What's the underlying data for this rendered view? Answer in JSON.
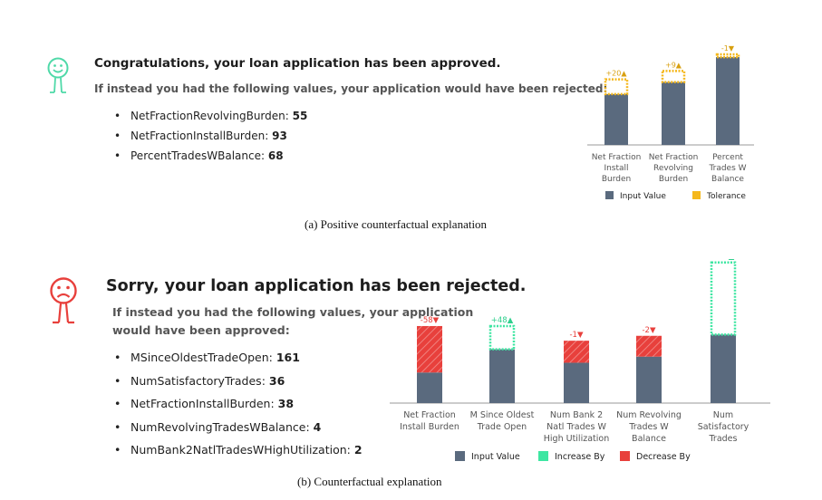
{
  "panel_a": {
    "face_icon": "smiley-face-icon",
    "title": "Congratulations, your loan application has been approved.",
    "subtitle": "If instead you had the following values, your application would have been rejected:",
    "items": [
      {
        "name": "NetFractionRevolvingBurden",
        "value": "55"
      },
      {
        "name": "NetFractionInstallBurden",
        "value": "93"
      },
      {
        "name": "PercentTradesWBalance",
        "value": "68"
      }
    ],
    "caption": "(a) Positive counterfactual explanation"
  },
  "panel_b": {
    "face_icon": "sad-face-icon",
    "title": "Sorry, your loan application has been rejected.",
    "subtitle": "If instead you had the following values, your application would have been approved:",
    "items": [
      {
        "name": "MSinceOldestTradeOpen",
        "value": "161"
      },
      {
        "name": "NumSatisfactoryTrades",
        "value": "36"
      },
      {
        "name": "NetFractionInstallBurden",
        "value": "38"
      },
      {
        "name": "NumRevolvingTradesWBalance",
        "value": "4"
      },
      {
        "name": "NumBank2NatlTradesWHighUtilization",
        "value": "2"
      }
    ],
    "caption": "(b) Counterfactual explanation"
  },
  "chart_data": [
    {
      "type": "bar",
      "categories": [
        [
          "Net Fraction",
          "Install",
          "Burden"
        ],
        [
          "Net Fraction",
          "Revolving",
          "Burden"
        ],
        [
          "Percent",
          "Trades W",
          "Balance"
        ]
      ],
      "series": [
        {
          "name": "Input Value",
          "values": [
            0.55,
            0.68,
            0.95
          ]
        },
        {
          "name": "Tolerance",
          "values": [
            0.16,
            0.12,
            0.03
          ]
        }
      ],
      "data_labels": [
        "+20▲",
        "+9▲",
        "-1▼"
      ],
      "legend": [
        "Input Value",
        "Tolerance"
      ],
      "legend_placement": "bottom",
      "colors": {
        "input": "#5a6a7e",
        "tolerance": "#f5b81c"
      }
    },
    {
      "type": "bar",
      "categories": [
        [
          "Net Fraction",
          "Install Burden"
        ],
        [
          "M Since Oldest",
          "Trade Open"
        ],
        [
          "Num Bank 2",
          "Natl Trades W",
          "High Utilization"
        ],
        [
          "Num Revolving",
          "Trades W",
          "Balance"
        ],
        [
          "Num",
          "Satisfactory",
          "Trades"
        ]
      ],
      "series": [
        {
          "name": "Input Value",
          "values": [
            0.25,
            0.44,
            0.33,
            0.38,
            0.56
          ]
        },
        {
          "name": "Increase By",
          "values": [
            0,
            0.19,
            0,
            0,
            0.59
          ]
        },
        {
          "name": "Decrease By",
          "values": [
            0.38,
            0,
            0.18,
            0.17,
            0
          ]
        }
      ],
      "data_labels": [
        "-58▼",
        "+48▲",
        "-1▼",
        "-2▼",
        "+15▲"
      ],
      "legend": [
        "Input Value",
        "Increase By",
        "Decrease By"
      ],
      "legend_placement": "bottom",
      "colors": {
        "input": "#5a6a7e",
        "increase": "#3ee6a2",
        "decrease": "#e8403c",
        "label_down": "#e8403c",
        "label_up": "#3ee6a2"
      }
    }
  ]
}
